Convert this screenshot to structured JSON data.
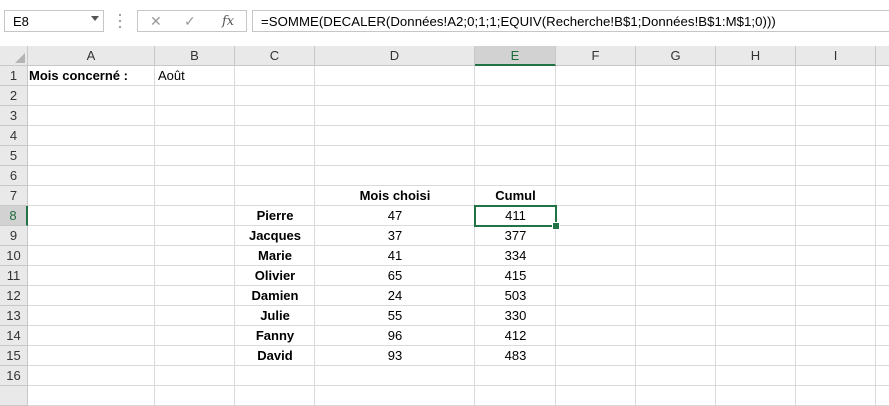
{
  "name_box": {
    "value": "E8"
  },
  "formula_bar": {
    "cancel_icon": "✕",
    "enter_icon": "✓",
    "fx_label": "fx",
    "formula": "=SOMME(DECALER(Données!A2;0;1;1;EQUIV(Recherche!B$1;Données!B$1:M$1;0)))"
  },
  "columns": [
    "A",
    "B",
    "C",
    "D",
    "E",
    "F",
    "G",
    "H",
    "I"
  ],
  "rows": [
    "1",
    "2",
    "3",
    "4",
    "5",
    "6",
    "7",
    "8",
    "9",
    "10",
    "11",
    "12",
    "13",
    "14",
    "15",
    "16"
  ],
  "selected_cell": {
    "column": "E",
    "row": "8"
  },
  "sheet": {
    "a1_label": "Mois concerné :",
    "b1_value": "Août",
    "header_mois": "Mois choisi",
    "header_cumul": "Cumul",
    "people": [
      {
        "name": "Pierre",
        "mois": "47",
        "cumul": "411"
      },
      {
        "name": "Jacques",
        "mois": "37",
        "cumul": "377"
      },
      {
        "name": "Marie",
        "mois": "41",
        "cumul": "334"
      },
      {
        "name": "Olivier",
        "mois": "65",
        "cumul": "415"
      },
      {
        "name": "Damien",
        "mois": "24",
        "cumul": "503"
      },
      {
        "name": "Julie",
        "mois": "55",
        "cumul": "330"
      },
      {
        "name": "Fanny",
        "mois": "96",
        "cumul": "412"
      },
      {
        "name": "David",
        "mois": "93",
        "cumul": "483"
      }
    ]
  },
  "colors": {
    "selection": "#217346",
    "header_bg": "#e9e9e9",
    "gridline": "#dadada"
  }
}
